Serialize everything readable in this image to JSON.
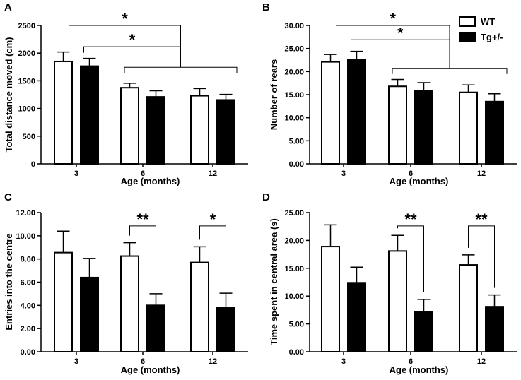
{
  "chart_data": [
    {
      "panel": "A",
      "type": "bar",
      "categories": [
        "3",
        "6",
        "12"
      ],
      "series": [
        {
          "name": "WT",
          "values": [
            1850,
            1375,
            1230
          ],
          "errors": [
            170,
            80,
            130
          ]
        },
        {
          "name": "Tg+/-",
          "values": [
            1765,
            1210,
            1155
          ],
          "errors": [
            140,
            110,
            100
          ]
        }
      ],
      "ylim": [
        0,
        2500
      ],
      "yticks": [
        "0",
        "500",
        "1000",
        "1500",
        "2000",
        "2500"
      ],
      "ytick_values": [
        0,
        500,
        1000,
        1500,
        2000,
        2500
      ],
      "ylabel": "Total distance moved (cm)",
      "xlabel": "Age (months)",
      "significance": [
        {
          "label": "*",
          "from_bar": "3-WT",
          "to_bracket": "6-12",
          "height": 2520
        },
        {
          "label": "*",
          "from_bar": "3-Tg",
          "to_bracket": "6-12",
          "height": 2115
        }
      ],
      "group_bracket_height": 1745
    },
    {
      "panel": "B",
      "type": "bar",
      "categories": [
        "3",
        "6",
        "12"
      ],
      "series": [
        {
          "name": "WT",
          "values": [
            22.1,
            16.8,
            15.5
          ],
          "errors": [
            1.6,
            1.5,
            1.6
          ]
        },
        {
          "name": "Tg+/-",
          "values": [
            22.5,
            15.8,
            13.5
          ],
          "errors": [
            1.9,
            1.8,
            1.7
          ]
        }
      ],
      "ylim": [
        0,
        30
      ],
      "yticks": [
        "0.00",
        "5.00",
        "10.00",
        "15.00",
        "20.00",
        "25.00",
        "30.00"
      ],
      "ytick_values": [
        0,
        5,
        10,
        15,
        20,
        25,
        30
      ],
      "ylabel": "Number of rears",
      "xlabel": "Age (months)",
      "significance": [
        {
          "label": "*",
          "from_bar": "3-WT",
          "to_bracket": "6-12",
          "height": 31.3
        },
        {
          "label": "*",
          "from_bar": "3-Tg",
          "to_bracket": "6-12",
          "height": 26.9
        }
      ],
      "group_bracket_height": 20.7
    },
    {
      "panel": "C",
      "type": "bar",
      "categories": [
        "3",
        "6",
        "12"
      ],
      "series": [
        {
          "name": "WT",
          "values": [
            8.55,
            8.25,
            7.7
          ],
          "errors": [
            1.85,
            1.15,
            1.35
          ]
        },
        {
          "name": "Tg+/-",
          "values": [
            6.4,
            4.0,
            3.8
          ],
          "errors": [
            1.65,
            1.0,
            1.25
          ]
        }
      ],
      "ylim": [
        0,
        12
      ],
      "yticks": [
        "0.00",
        "2.00",
        "4.00",
        "6.00",
        "8.00",
        "10.00",
        "12.00"
      ],
      "ytick_values": [
        0,
        2,
        4,
        6,
        8,
        10,
        12
      ],
      "ylabel": "Entries into the centre",
      "xlabel": "Age (months)",
      "significance": [
        {
          "label": "**",
          "category": "6",
          "height": 10.85
        },
        {
          "label": "*",
          "category": "12",
          "height": 10.85
        }
      ]
    },
    {
      "panel": "D",
      "type": "bar",
      "categories": [
        "3",
        "6",
        "12"
      ],
      "series": [
        {
          "name": "WT",
          "values": [
            18.9,
            18.1,
            15.6
          ],
          "errors": [
            3.9,
            2.8,
            1.8
          ]
        },
        {
          "name": "Tg+/-",
          "values": [
            12.4,
            7.2,
            8.1
          ],
          "errors": [
            2.8,
            2.2,
            2.1
          ]
        }
      ],
      "ylim": [
        0,
        25
      ],
      "yticks": [
        "0.00",
        "5.00",
        "10.00",
        "15.00",
        "20.00",
        "25.00"
      ],
      "ytick_values": [
        0,
        5,
        10,
        15,
        20,
        25
      ],
      "ylabel": "Time spent in central area (s)",
      "xlabel": "Age (months)",
      "significance": [
        {
          "label": "**",
          "category": "6",
          "height": 22.6
        },
        {
          "label": "**",
          "category": "12",
          "height": 22.6
        }
      ]
    }
  ],
  "legend": {
    "entries": [
      {
        "label": "WT",
        "fill": "#ffffff"
      },
      {
        "label": "Tg+/-",
        "fill": "#000000"
      }
    ]
  },
  "colors": {
    "wt": "#ffffff",
    "tg": "#000000",
    "stroke": "#000000"
  }
}
